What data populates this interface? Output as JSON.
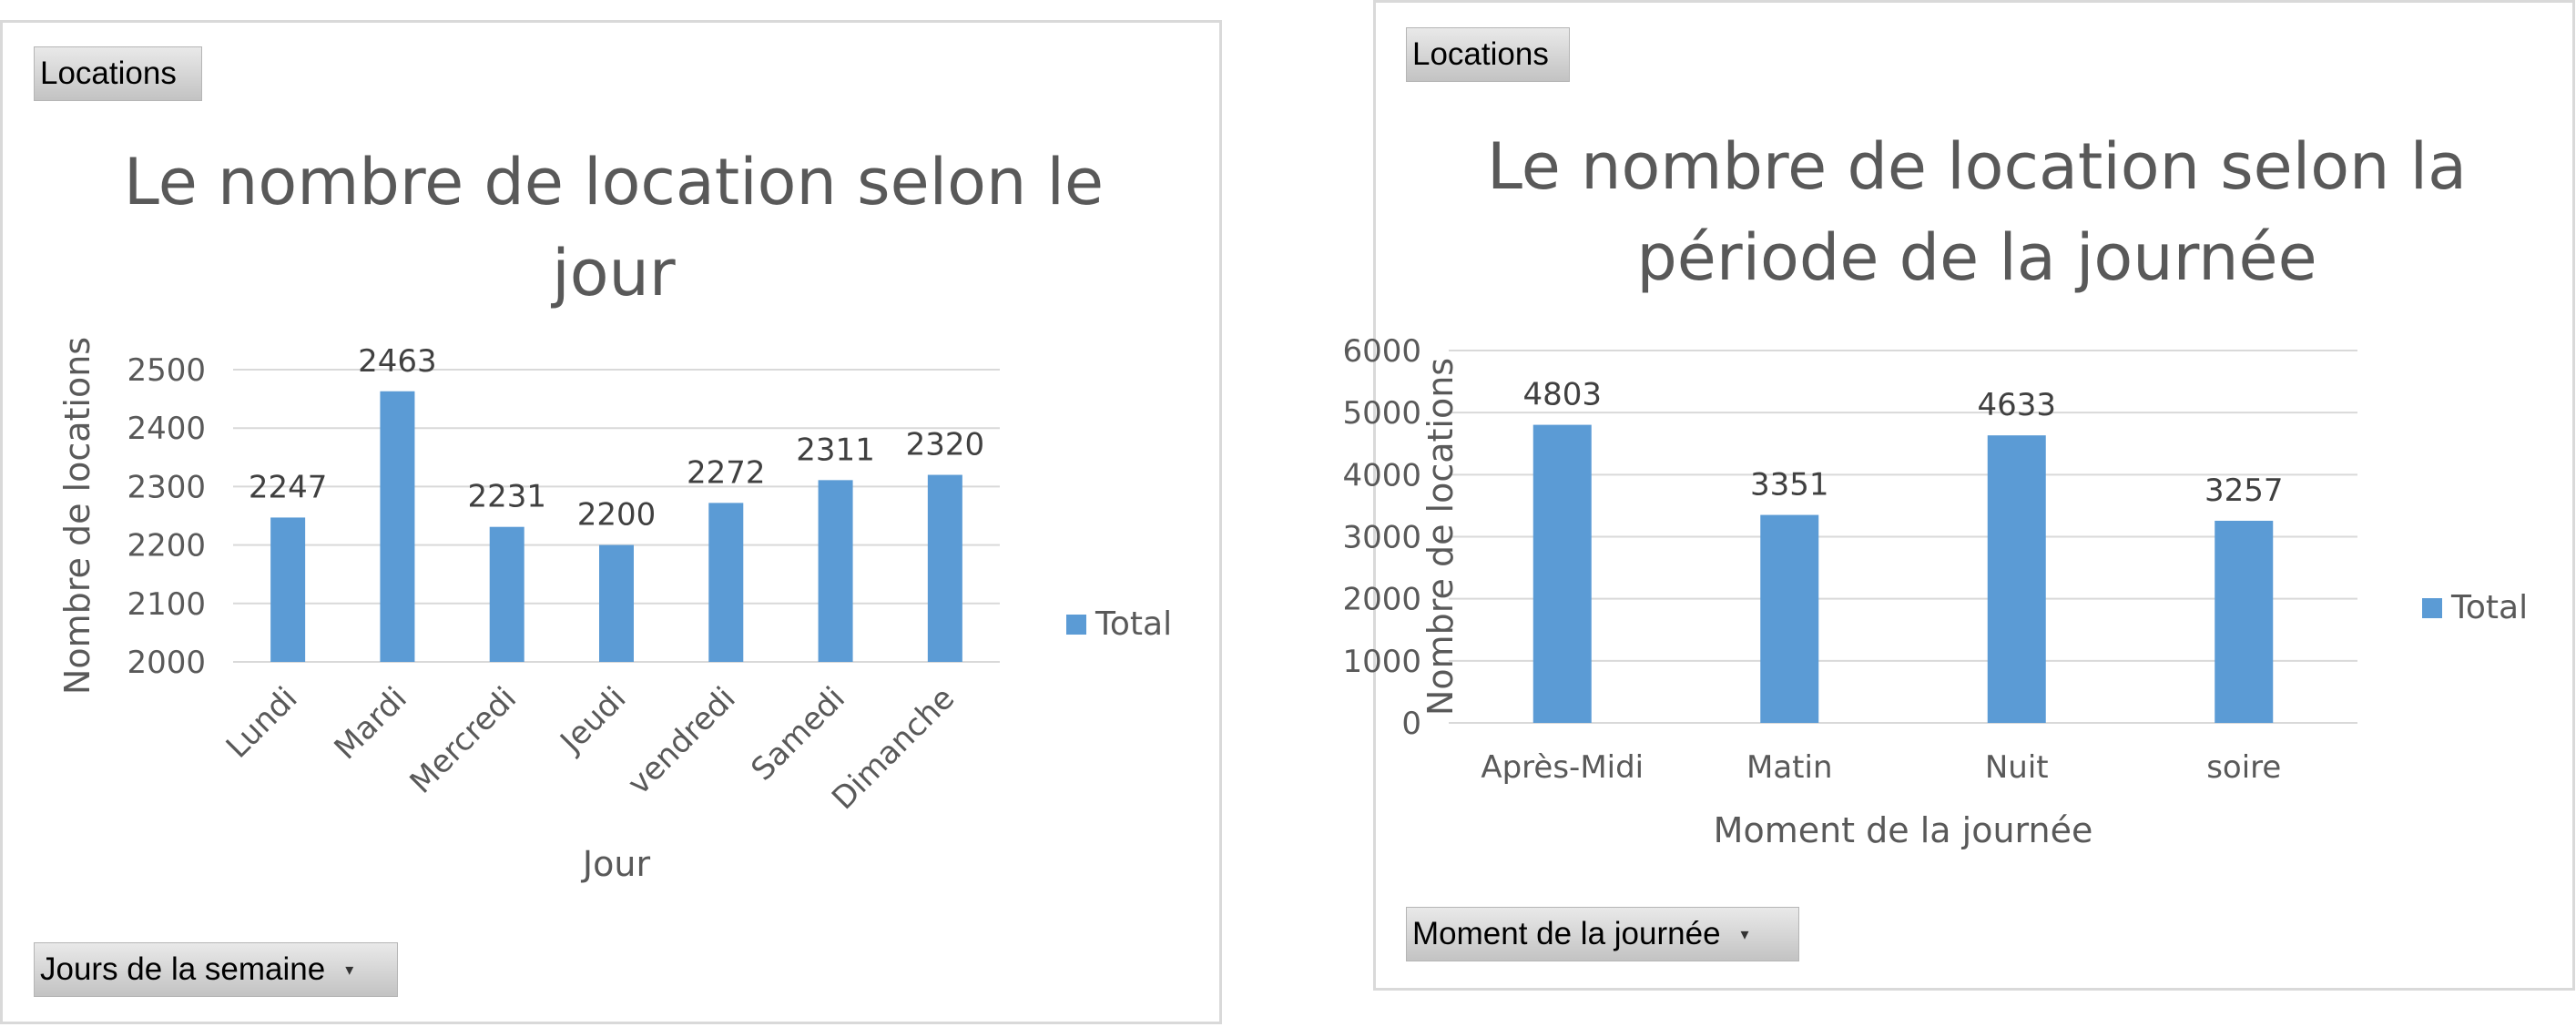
{
  "colors": {
    "bar": "#5b9bd5",
    "text": "#595959",
    "grid": "#d9d9d9",
    "label": "#404040"
  },
  "charts": [
    {
      "field_button": "Locations",
      "axis_button": "Jours de la semaine",
      "title_lines": [
        "Le nombre de location selon le",
        "jour"
      ]
    },
    {
      "field_button": "Locations",
      "axis_button": "Moment de la journée",
      "title_lines": [
        "Le nombre de location selon la",
        "période de la journée"
      ]
    }
  ],
  "chart_data": [
    {
      "type": "bar",
      "title": "Le nombre de location selon le jour",
      "categories": [
        "Lundi",
        "Mardi",
        "Mercredi",
        "Jeudi",
        "vendredi",
        "Samedi",
        "Dimanche"
      ],
      "series": [
        {
          "name": "Total",
          "values": [
            2247,
            2463,
            2231,
            2200,
            2272,
            2311,
            2320
          ]
        }
      ],
      "xlabel": "Jour",
      "ylabel": "Nombre de locations",
      "ylim": [
        2000,
        2500
      ],
      "yticks": [
        2000,
        2100,
        2200,
        2300,
        2400,
        2500
      ],
      "data_labels": true,
      "grid": true,
      "legend": "right",
      "x_tick_rotation": "diagonal"
    },
    {
      "type": "bar",
      "title": "Le nombre de location selon la période de la journée",
      "categories": [
        "Après-Midi",
        "Matin",
        "Nuit",
        "soire"
      ],
      "series": [
        {
          "name": "Total",
          "values": [
            4803,
            3351,
            4633,
            3257
          ]
        }
      ],
      "xlabel": "Moment de la journée",
      "ylabel": "Nombre de locations",
      "ylim": [
        0,
        6000
      ],
      "yticks": [
        0,
        1000,
        2000,
        3000,
        4000,
        5000,
        6000
      ],
      "data_labels": true,
      "grid": true,
      "legend": "right",
      "x_tick_rotation": "none"
    }
  ]
}
